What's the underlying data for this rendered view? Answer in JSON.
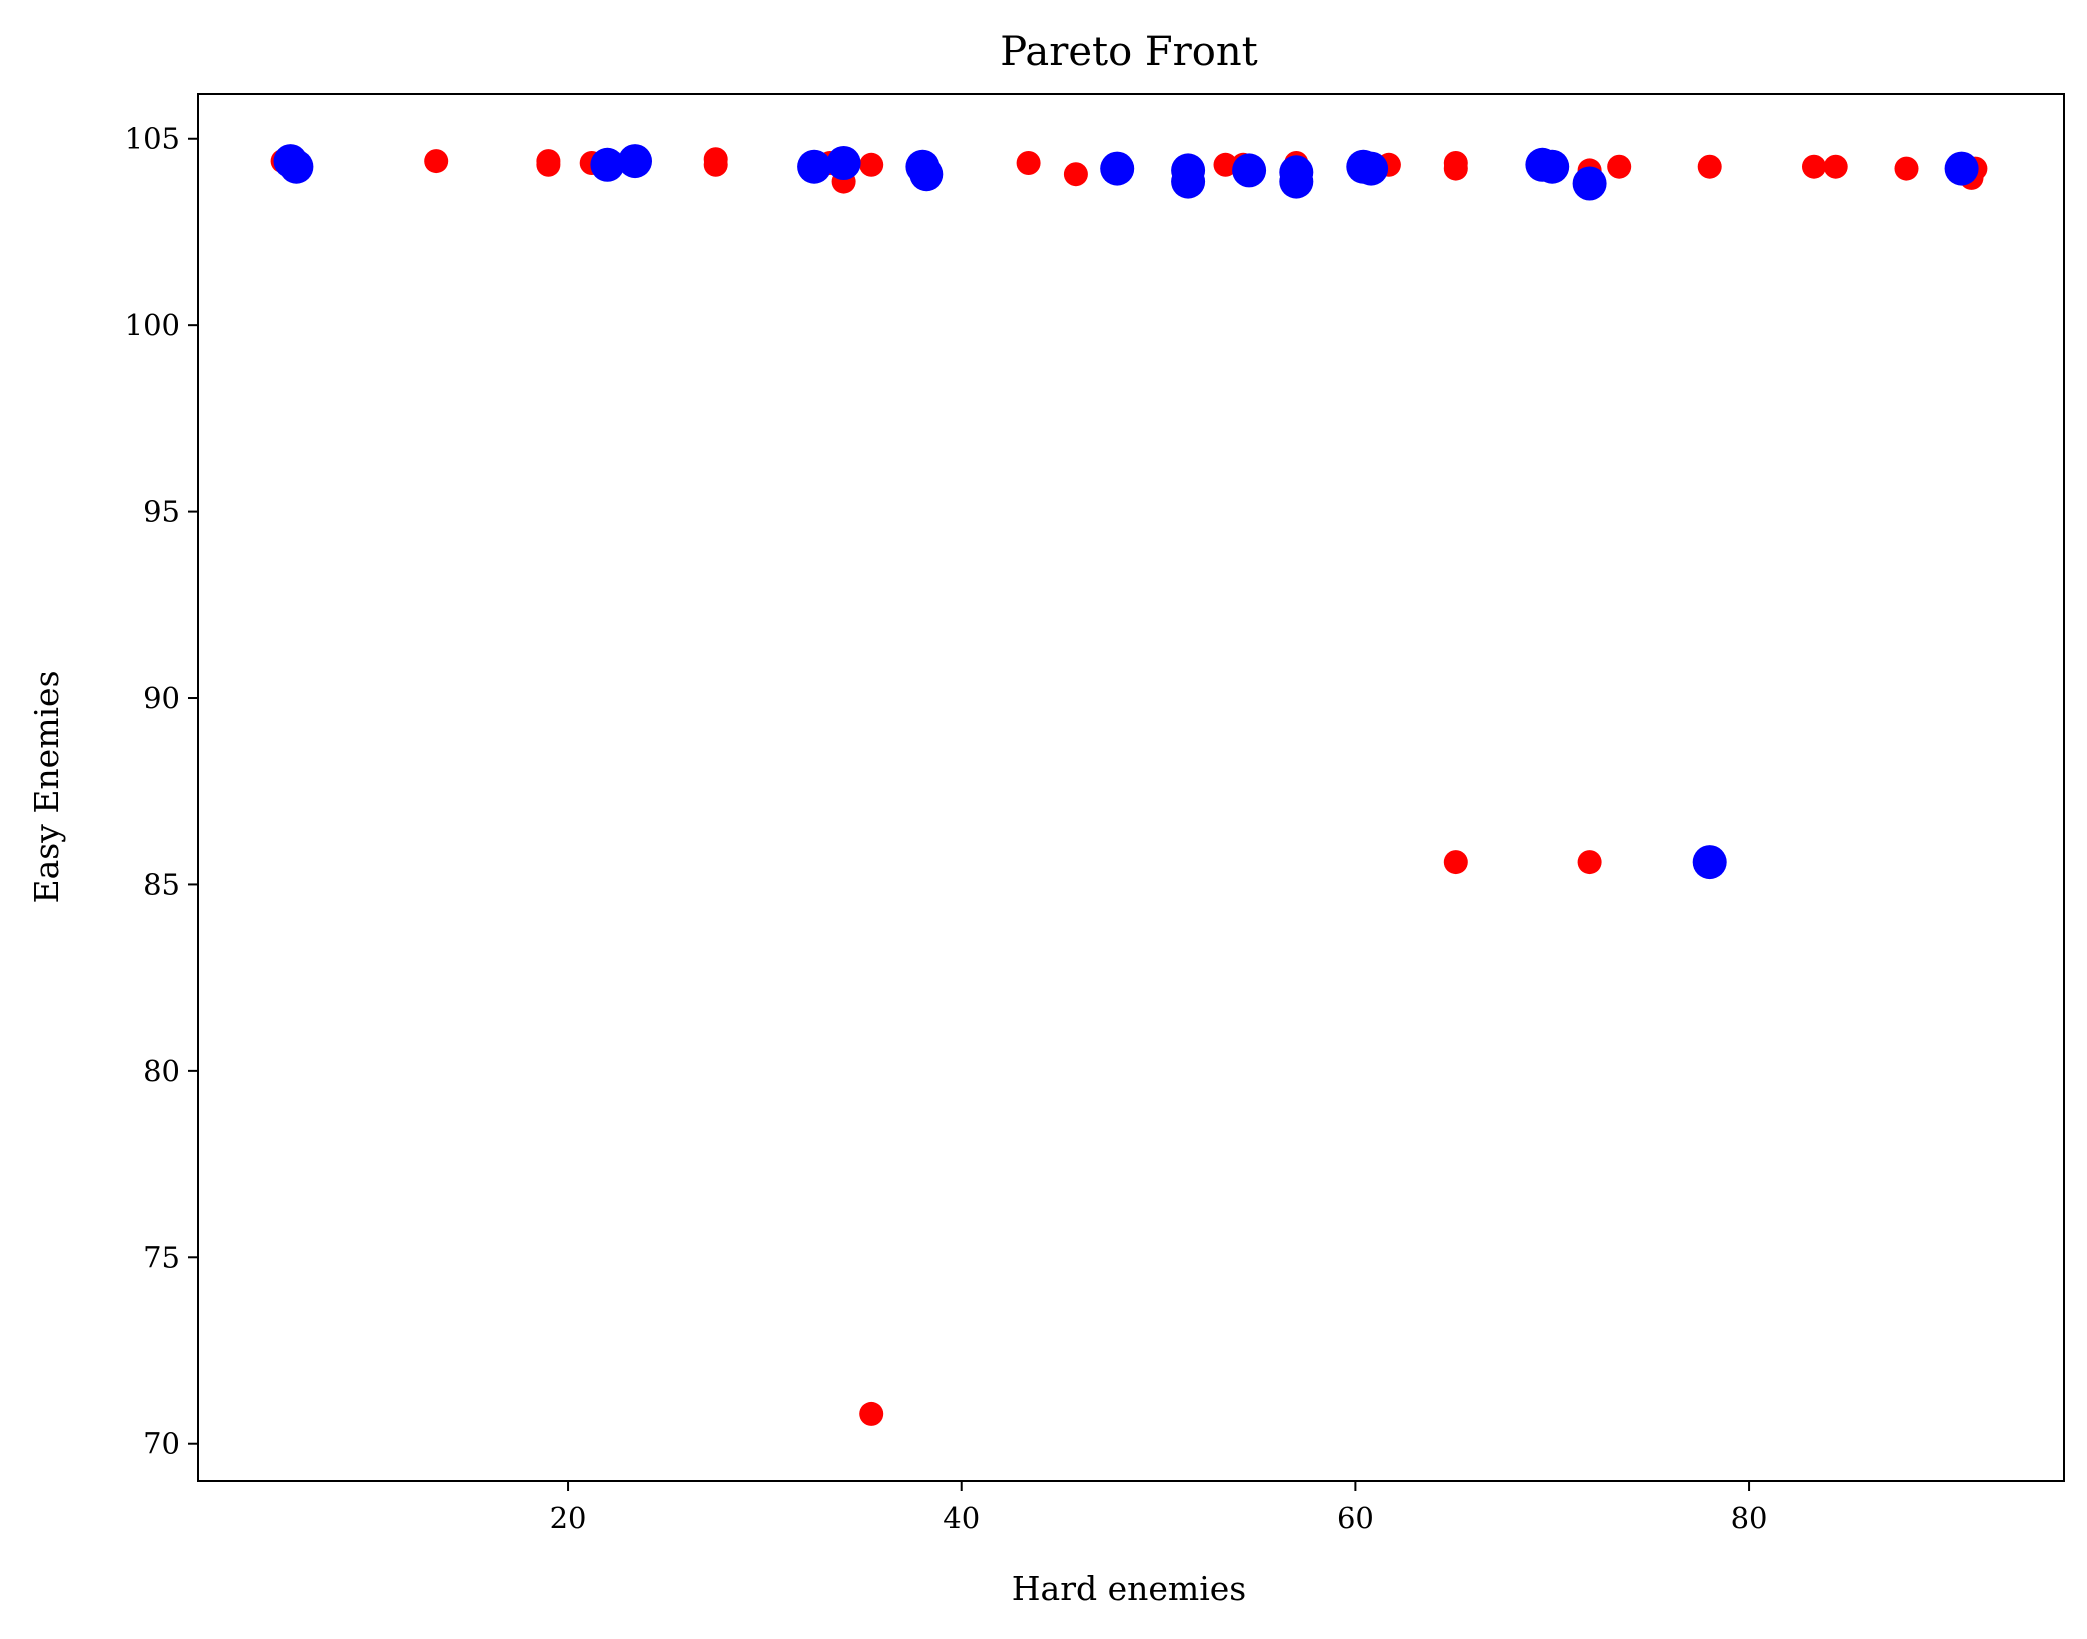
{
  "chart_data": {
    "type": "scatter",
    "title": "Pareto Front",
    "xlabel": "Hard enemies",
    "ylabel": "Easy Enemies",
    "xlim": [
      1.2,
      96
    ],
    "ylim": [
      69.0,
      106.2
    ],
    "x_ticks": [
      20,
      40,
      60,
      80
    ],
    "y_ticks": [
      70,
      75,
      80,
      85,
      90,
      95,
      100,
      105
    ],
    "grid": false,
    "legend": "none",
    "series": [
      {
        "color": "#ff0000",
        "marker_size": "small",
        "points": [
          [
            5.5,
            104.4
          ],
          [
            6.2,
            104.3
          ],
          [
            13.3,
            104.4
          ],
          [
            19.0,
            104.4
          ],
          [
            19.0,
            104.3
          ],
          [
            21.2,
            104.35
          ],
          [
            21.9,
            104.3
          ],
          [
            27.5,
            104.45
          ],
          [
            27.5,
            104.3
          ],
          [
            33.3,
            104.35
          ],
          [
            34.0,
            103.85
          ],
          [
            35.4,
            104.3
          ],
          [
            35.4,
            70.8
          ],
          [
            43.4,
            104.35
          ],
          [
            45.8,
            104.05
          ],
          [
            53.4,
            104.3
          ],
          [
            54.3,
            104.3
          ],
          [
            57.0,
            104.35
          ],
          [
            61.7,
            104.3
          ],
          [
            65.1,
            104.35
          ],
          [
            65.1,
            104.2
          ],
          [
            65.1,
            85.6
          ],
          [
            71.9,
            104.15
          ],
          [
            71.9,
            85.6
          ],
          [
            73.4,
            104.25
          ],
          [
            78.0,
            104.25
          ],
          [
            83.3,
            104.25
          ],
          [
            84.4,
            104.25
          ],
          [
            88.0,
            104.2
          ],
          [
            91.5,
            104.2
          ],
          [
            91.3,
            103.95
          ]
        ]
      },
      {
        "color": "#0000ff",
        "marker_size": "large",
        "points": [
          [
            5.9,
            104.4
          ],
          [
            6.2,
            104.25
          ],
          [
            22.0,
            104.3
          ],
          [
            23.4,
            104.4
          ],
          [
            32.5,
            104.25
          ],
          [
            34.0,
            104.35
          ],
          [
            38.0,
            104.25
          ],
          [
            38.2,
            104.05
          ],
          [
            47.9,
            104.2
          ],
          [
            51.5,
            104.15
          ],
          [
            51.5,
            103.85
          ],
          [
            54.6,
            104.15
          ],
          [
            57.0,
            104.1
          ],
          [
            57.0,
            103.85
          ],
          [
            60.4,
            104.25
          ],
          [
            60.8,
            104.2
          ],
          [
            69.5,
            104.3
          ],
          [
            70.0,
            104.25
          ],
          [
            71.9,
            103.8
          ],
          [
            78.0,
            85.6
          ],
          [
            90.8,
            104.2
          ]
        ]
      }
    ]
  }
}
